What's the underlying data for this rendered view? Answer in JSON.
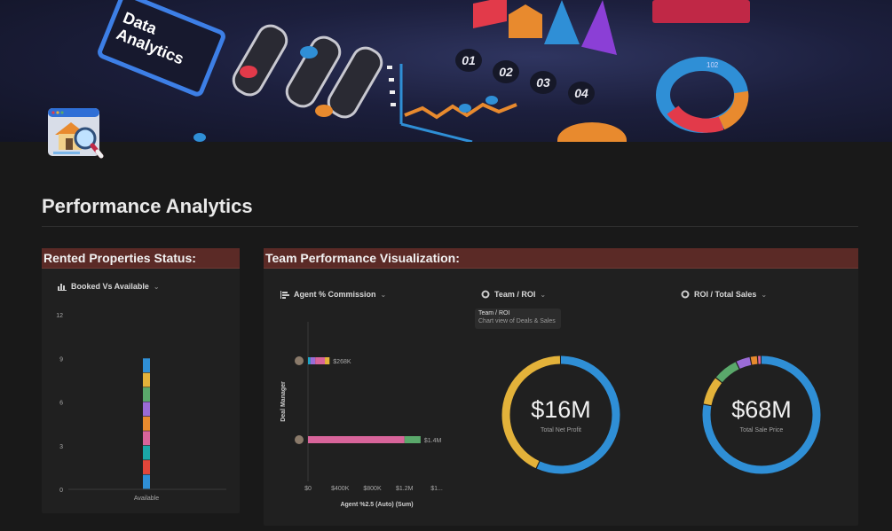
{
  "banner": {
    "image_text": "Data Analytics",
    "steps": [
      "01",
      "02",
      "03",
      "04"
    ],
    "ring_label": "102"
  },
  "page": {
    "title": "Performance Analytics"
  },
  "rented": {
    "header": "Rented Properties Status:",
    "view_label": "Booked Vs Available",
    "chart_data": {
      "type": "bar",
      "categories": [
        "Available"
      ],
      "stack_count": 9,
      "segment_colors": [
        "#2f8fd6",
        "#e2463a",
        "#1ba7a7",
        "#d8649a",
        "#e88a2e",
        "#9a6bd6",
        "#5aa86b",
        "#e3b23a",
        "#2f8fd6"
      ],
      "ylim": [
        0,
        12
      ],
      "yticks": [
        "0",
        "3",
        "6",
        "9",
        "12"
      ]
    }
  },
  "team": {
    "header": "Team Performance Visualization:",
    "agent_view_label": "Agent % Commission",
    "team_roi_label": "Team / ROI",
    "roi_sales_label": "ROI / Total Sales",
    "tooltip_title": "Team / ROI",
    "tooltip_desc": "Chart view of Deals & Sales"
  },
  "agent_chart": {
    "chart_data": {
      "type": "bar",
      "orientation": "horizontal",
      "xlabel": "Agent %2.5 (Auto) (Sum)",
      "ylabel": "Deal Manager",
      "xticks": [
        "$0",
        "$400K",
        "$800K",
        "$1.2M",
        "$1..."
      ],
      "bars": [
        {
          "label": "$268K",
          "value": 268000,
          "segments": [
            {
              "color": "#1ba7c7",
              "value": 30000
            },
            {
              "color": "#9a6bd6",
              "value": 60000
            },
            {
              "color": "#d8649a",
              "value": 120000
            },
            {
              "color": "#e3b23a",
              "value": 58000
            }
          ]
        },
        {
          "label": "$1.4M",
          "value": 1400000,
          "segments": [
            {
              "color": "#d8649a",
              "value": 1200000
            },
            {
              "color": "#5aa86b",
              "value": 200000
            }
          ]
        }
      ],
      "xmax": 1600000
    }
  },
  "donut1": {
    "value_text": "$16M",
    "sub_text": "Total Net Profit",
    "chart_data": {
      "type": "pie",
      "slices": [
        {
          "color": "#2f8fd6",
          "value": 57
        },
        {
          "color": "#e3b23a",
          "value": 43
        }
      ]
    }
  },
  "donut2": {
    "value_text": "$68M",
    "sub_text": "Total Sale Price",
    "chart_data": {
      "type": "pie",
      "slices": [
        {
          "color": "#2f8fd6",
          "value": 78
        },
        {
          "color": "#e3b23a",
          "value": 8
        },
        {
          "color": "#5aa86b",
          "value": 7
        },
        {
          "color": "#9a6bd6",
          "value": 4
        },
        {
          "color": "#e88a2e",
          "value": 2
        },
        {
          "color": "#d8649a",
          "value": 1
        }
      ]
    }
  }
}
